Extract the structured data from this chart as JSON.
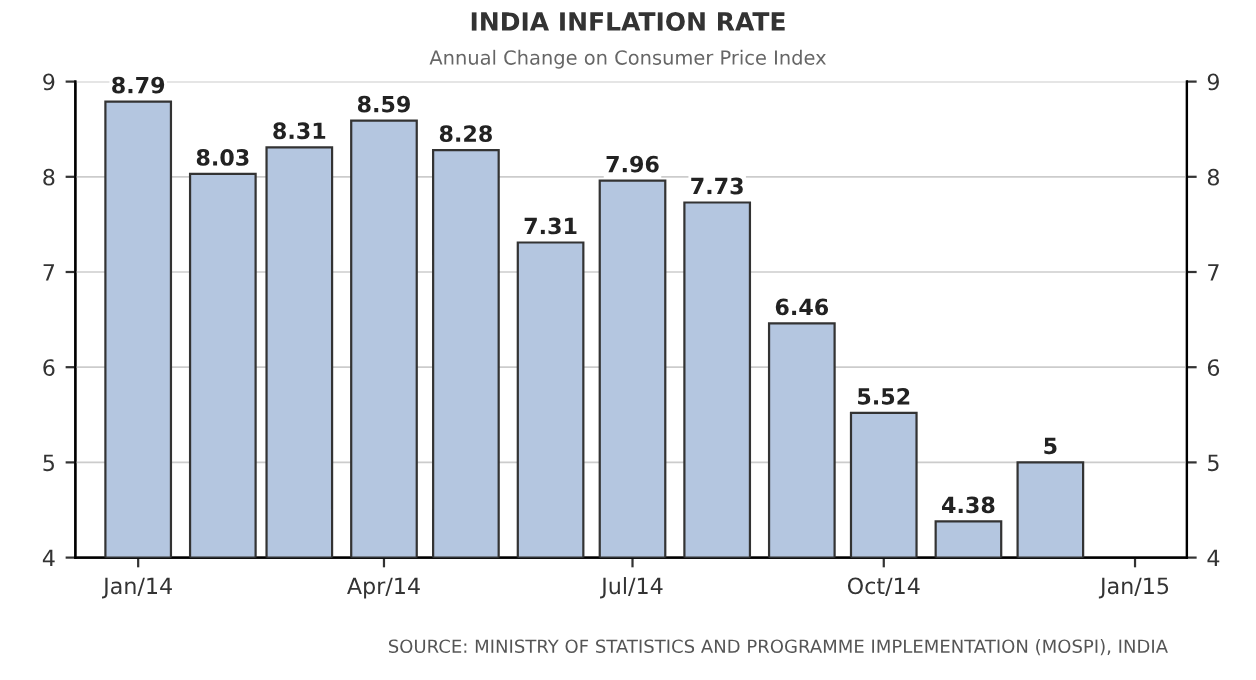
{
  "chart_data": {
    "type": "bar",
    "title": "INDIA INFLATION RATE",
    "subtitle": "Annual Change on Consumer Price Index",
    "x": [
      "2014-01",
      "2014-02",
      "2014-03",
      "2014-04",
      "2014-05",
      "2014-06",
      "2014-07",
      "2014-08",
      "2014-09",
      "2014-10",
      "2014-11",
      "2014-12"
    ],
    "values": [
      8.79,
      8.03,
      8.31,
      8.59,
      8.28,
      7.31,
      7.96,
      7.73,
      6.46,
      5.52,
      4.38,
      5
    ],
    "color": "#b4c6e0",
    "data_labels": true,
    "xlim": [
      "2013-12-09",
      "2015-01-20"
    ],
    "xticks": [
      {
        "value": "2014-01",
        "label": "Jan/14"
      },
      {
        "value": "2014-04",
        "label": "Apr/14"
      },
      {
        "value": "2014-07",
        "label": "Jul/14"
      },
      {
        "value": "2014-10",
        "label": "Oct/14"
      },
      {
        "value": "2015-01",
        "label": "Jan/15"
      }
    ],
    "ylim": [
      4,
      9
    ],
    "yticks": [
      4,
      5,
      6,
      7,
      8,
      9
    ],
    "y2lim": [
      4,
      9
    ],
    "y2ticks": [
      4,
      5,
      6,
      7,
      8,
      9
    ],
    "grid": "y",
    "annotations": [
      "SOURCE: MINISTRY OF STATISTICS AND PROGRAMME IMPLEMENTATION (MOSPI), INDIA"
    ]
  }
}
